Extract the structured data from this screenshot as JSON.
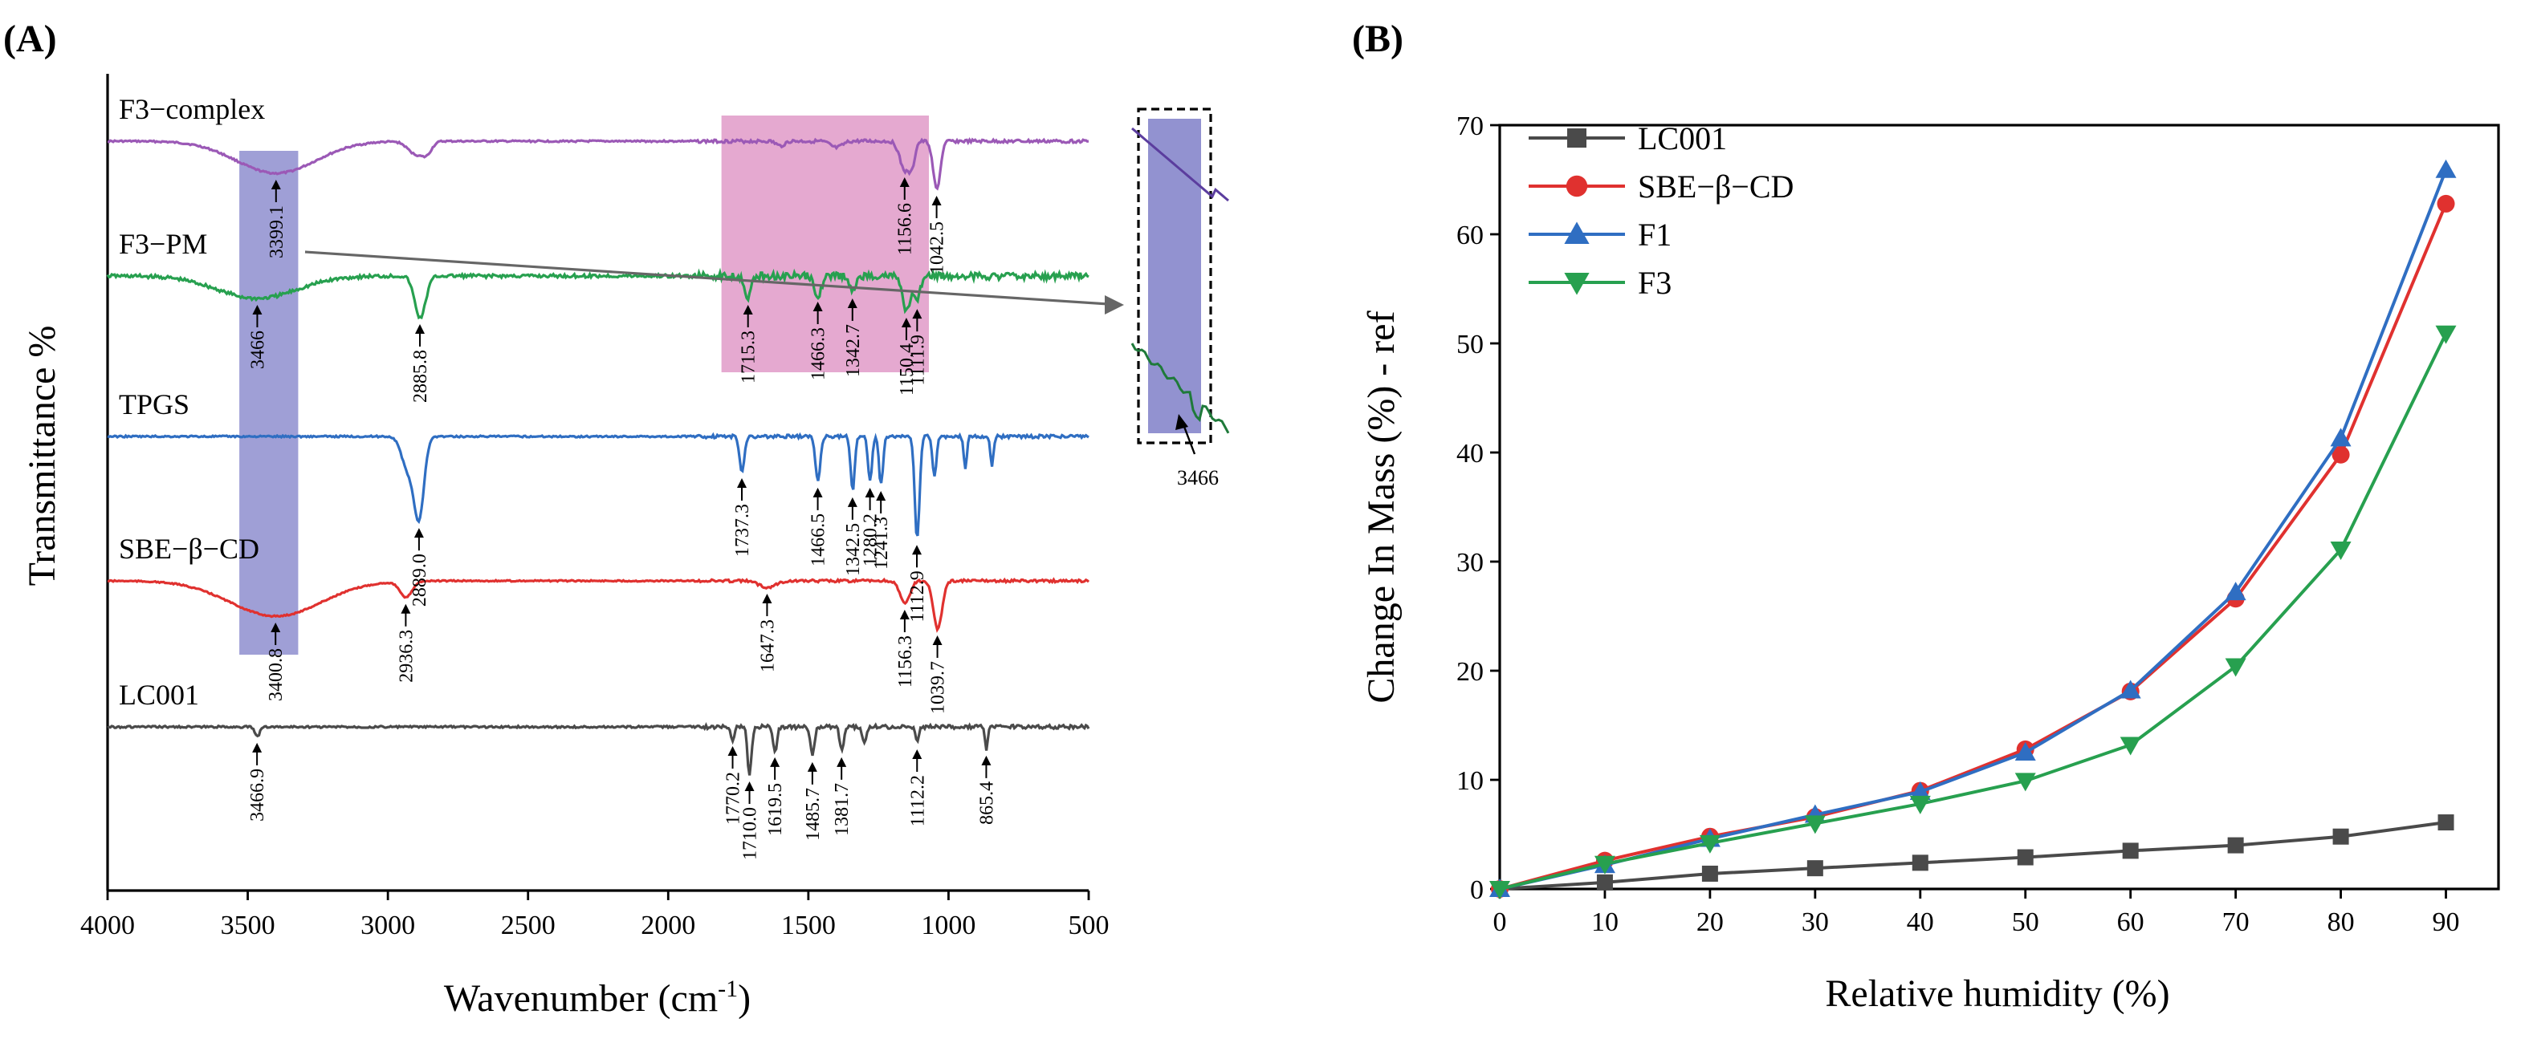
{
  "chart_data": [
    {
      "type": "line",
      "panel_label": "(A)",
      "title": "",
      "xlabel": "Wavenumber (cm",
      "xlabel_superscript": "-1",
      "xlabel_suffix": ")",
      "ylabel": "Transmittance %",
      "xlim": [
        4000,
        500
      ],
      "x_reversed": true,
      "x_ticks": [
        4000,
        3500,
        3000,
        2500,
        2000,
        1500,
        1000,
        500
      ],
      "y_ticks": [],
      "series": [
        {
          "name": "F3−complex",
          "color": "#9b59b6",
          "baseline": 88,
          "bands": [
            [
              3399,
              20,
              200
            ],
            [
              2900,
              8,
              40
            ],
            [
              2860,
              6,
              25
            ],
            [
              1600,
              3,
              20
            ],
            [
              1400,
              4,
              30
            ],
            [
              1156,
              18,
              25
            ],
            [
              1130,
              12,
              15
            ],
            [
              1042,
              30,
              18
            ]
          ],
          "noise": 1.0,
          "peak_labels": [
            {
              "x": 3399.1,
              "text": "3399.1"
            },
            {
              "x": 1156.6,
              "text": "1156.6"
            },
            {
              "x": 1042.5,
              "text": "1042.5"
            }
          ]
        },
        {
          "name": "F3−PM",
          "color": "#27a04f",
          "baseline": 172,
          "bands": [
            [
              3466,
              14,
              200
            ],
            [
              2885,
              26,
              28
            ],
            [
              1715,
              14,
              15
            ],
            [
              1466,
              12,
              18
            ],
            [
              1342,
              10,
              15
            ],
            [
              1150,
              22,
              20
            ],
            [
              1112,
              16,
              15
            ]
          ],
          "noise": 2.2,
          "peak_labels": [
            {
              "x": 3466,
              "text": "3466"
            },
            {
              "x": 2885.8,
              "text": "2885.8"
            },
            {
              "x": 1715.3,
              "text": "1715.3"
            },
            {
              "x": 1466.3,
              "text": "1466.3"
            },
            {
              "x": 1342.7,
              "text": "1342.7"
            },
            {
              "x": 1150.4,
              "text": "1150.4"
            },
            {
              "x": 1111.9,
              "text": "1111.9"
            }
          ]
        },
        {
          "name": "TPGS",
          "color": "#2f6ec2",
          "baseline": 272,
          "bands": [
            [
              2889,
              50,
              25
            ],
            [
              2930,
              20,
              30
            ],
            [
              1737,
              22,
              12
            ],
            [
              1466,
              28,
              12
            ],
            [
              1342,
              34,
              10
            ],
            [
              1280,
              28,
              10
            ],
            [
              1241,
              30,
              10
            ],
            [
              1112,
              64,
              12
            ],
            [
              1050,
              25,
              10
            ],
            [
              940,
              20,
              8
            ],
            [
              845,
              18,
              8
            ]
          ],
          "noise": 1.0,
          "peak_labels": [
            {
              "x": 2889.0,
              "text": "2889.0"
            },
            {
              "x": 1737.3,
              "text": "1737.3"
            },
            {
              "x": 1466.5,
              "text": "1466.5"
            },
            {
              "x": 1342.5,
              "text": "1342.5"
            },
            {
              "x": 1280.2,
              "text": "1280.2"
            },
            {
              "x": 1241.3,
              "text": "1241.3"
            },
            {
              "x": 1112.9,
              "text": "1112.9"
            }
          ]
        },
        {
          "name": "SBE−β−CD",
          "color": "#e0312f",
          "baseline": 362,
          "bands": [
            [
              3400,
              22,
              230
            ],
            [
              2936,
              10,
              30
            ],
            [
              1647,
              4,
              40
            ],
            [
              1156,
              14,
              25
            ],
            [
              1039,
              30,
              22
            ]
          ],
          "noise": 0.8,
          "peak_labels": [
            {
              "x": 3400.8,
              "text": "3400.8"
            },
            {
              "x": 2936.3,
              "text": "2936.3"
            },
            {
              "x": 1647.3,
              "text": "1647.3"
            },
            {
              "x": 1156.3,
              "text": "1156.3"
            },
            {
              "x": 1039.7,
              "text": "1039.7"
            }
          ]
        },
        {
          "name": "LC001",
          "color": "#4a4a4a",
          "baseline": 453,
          "bands": [
            [
              3466,
              6,
              12
            ],
            [
              1770,
              8,
              8
            ],
            [
              1710,
              30,
              10
            ],
            [
              1619,
              15,
              10
            ],
            [
              1485,
              18,
              10
            ],
            [
              1381,
              15,
              10
            ],
            [
              1300,
              10,
              10
            ],
            [
              1112,
              10,
              8
            ],
            [
              865,
              14,
              6
            ]
          ],
          "noise": 1.2,
          "peak_labels": [
            {
              "x": 3466.9,
              "text": "3466.9"
            },
            {
              "x": 1770.2,
              "text": "1770.2"
            },
            {
              "x": 1710.0,
              "text": "1710.0"
            },
            {
              "x": 1619.5,
              "text": "1619.5"
            },
            {
              "x": 1485.7,
              "text": "1485.7"
            },
            {
              "x": 1381.7,
              "text": "1381.7"
            },
            {
              "x": 1112.2,
              "text": "1112.2"
            },
            {
              "x": 865.4,
              "text": "865.4"
            }
          ]
        }
      ],
      "highlights": [
        {
          "name": "hydroxyl-band",
          "color": "#7f7fc8",
          "x_range": [
            3530,
            3320
          ]
        },
        {
          "name": "fingerprint-region",
          "color": "#dc8cc0",
          "x_range": [
            1810,
            1070
          ]
        }
      ],
      "inset_label": "3466"
    },
    {
      "type": "line",
      "panel_label": "(B)",
      "title": "",
      "xlabel": "Relative humidity (%)",
      "ylabel": "Change In Mass (%) - ref",
      "xlim": [
        0,
        95
      ],
      "ylim": [
        0,
        70
      ],
      "x_ticks": [
        0,
        10,
        20,
        30,
        40,
        50,
        60,
        70,
        80,
        90
      ],
      "y_ticks": [
        0,
        10,
        20,
        30,
        40,
        50,
        60,
        70
      ],
      "legend_position": "top-left",
      "x": [
        0,
        10,
        20,
        30,
        40,
        50,
        60,
        70,
        80,
        90
      ],
      "series": [
        {
          "name": "LC001",
          "color": "#4a4a4a",
          "marker": "square",
          "values": [
            0,
            0.6,
            1.4,
            1.9,
            2.4,
            2.9,
            3.5,
            4.0,
            4.8,
            6.1
          ]
        },
        {
          "name": "SBE−β−CD",
          "color": "#e0312f",
          "marker": "circle",
          "values": [
            0,
            2.6,
            4.8,
            6.6,
            9.0,
            12.8,
            18.1,
            26.6,
            39.8,
            62.8
          ]
        },
        {
          "name": "F1",
          "color": "#2f6ec2",
          "marker": "triangle-up",
          "values": [
            0,
            2.2,
            4.6,
            6.8,
            8.9,
            12.5,
            18.2,
            27.2,
            41.3,
            65.9
          ]
        },
        {
          "name": "F3",
          "color": "#27a04f",
          "marker": "triangle-down",
          "values": [
            0,
            2.3,
            4.2,
            6.0,
            7.8,
            9.9,
            13.2,
            20.4,
            31.1,
            50.9
          ]
        }
      ]
    }
  ]
}
